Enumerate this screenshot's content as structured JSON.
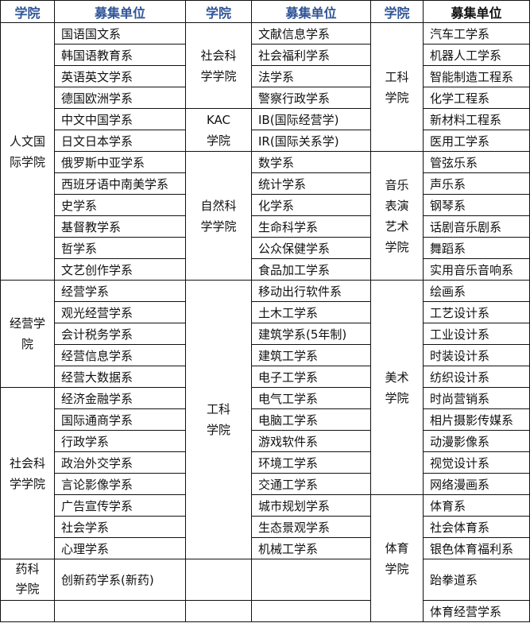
{
  "header": {
    "college_label": "学院",
    "unit_label": "募集单位",
    "header_color": "#2f5597",
    "last_header_color": "#111111"
  },
  "pairs": [
    [
      {
        "college": "人文国\n际学院",
        "units": [
          "国语国文系",
          "韩国语教育系",
          "英语英文学系",
          "德国欧洲学系",
          "中文中国学系",
          "日文日本学系",
          "俄罗斯中亚学系",
          "西班牙语中南美学系",
          "史学系",
          "基督教学系",
          "哲学系",
          "文艺创作学系"
        ]
      },
      {
        "college": "经营学\n院",
        "units": [
          "经营学系",
          "观光经营学系",
          "会计税务学系",
          "经营信息学系",
          "经营大数据系"
        ]
      },
      {
        "college": "社会科\n学学院",
        "units": [
          "经济金融学系",
          "国际通商学系",
          "行政学系",
          "政治外交学系",
          "言论影像学系",
          "广告宣传学系",
          "社会学系",
          "心理学系"
        ]
      },
      {
        "college": "药科\n学院",
        "units": [
          "创新药学系(新药)"
        ]
      },
      {
        "college": "",
        "units": [
          ""
        ]
      }
    ],
    [
      {
        "college": "社会科\n学学院",
        "units": [
          "文献信息学系",
          "社会福利学系",
          "法学系",
          "警察行政学系"
        ]
      },
      {
        "college": "KAC\n学院",
        "units": [
          "IB(国际经营学)",
          "IR(国际关系学)"
        ]
      },
      {
        "college": "自然科\n学学院",
        "units": [
          "数学系",
          "统计学系",
          "化学系",
          "生命科学系",
          "公众保健学系",
          "食品加工学系"
        ]
      },
      {
        "college": "工科\n学院",
        "units": [
          "移动出行软件系",
          "土木工学系",
          "建筑学系(5年制)",
          "建筑工学系",
          "电子工学系",
          "电气工学系",
          "电脑工学系",
          "游戏软件系",
          "环境工学系",
          "交通工学系",
          "城市规划学系",
          "生态景观学系",
          "机械工学系"
        ]
      },
      {
        "college": "",
        "units": [
          ""
        ]
      },
      {
        "college": "",
        "units": [
          ""
        ]
      }
    ],
    [
      {
        "college": "工科\n学院",
        "units": [
          "汽车工学系",
          "机器人工学系",
          "智能制造工程系",
          "化学工程系",
          "新材料工程系",
          "医用工学系"
        ]
      },
      {
        "college": "音乐\n表演\n艺术\n学院",
        "units": [
          "管弦乐系",
          "声乐系",
          "钢琴系",
          "话剧音乐剧系",
          "舞蹈系",
          "实用音乐音响系"
        ]
      },
      {
        "college": "美术\n学院",
        "units": [
          "绘画系",
          "工艺设计系",
          "工业设计系",
          "时装设计系",
          "纺织设计系",
          "时尚营销系",
          "相片摄影传媒系",
          "动漫影像系",
          "视觉设计系",
          "网络漫画系"
        ]
      },
      {
        "college": "体育\n学院",
        "units": [
          "体育系",
          "社会体育系",
          "银色体育福利系",
          "跆拳道系",
          "体育经营学系"
        ]
      }
    ]
  ]
}
